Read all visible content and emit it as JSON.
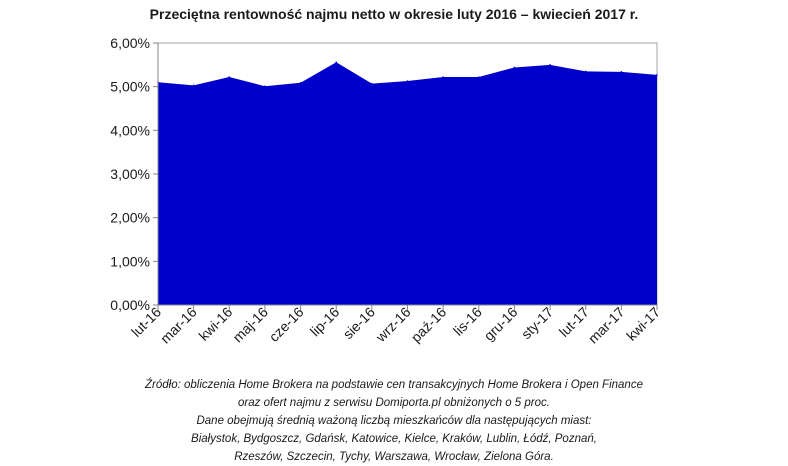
{
  "chart_data": {
    "type": "area",
    "title": "Przeciętna rentowność najmu netto w okresie luty 2016 – kwiecień 2017 r.",
    "xlabel": "",
    "ylabel": "",
    "x": [
      "lut-16",
      "mar-16",
      "kwi-16",
      "maj-16",
      "cze-16",
      "lip-16",
      "sie-16",
      "wrz-16",
      "paź-16",
      "lis-16",
      "gru-16",
      "sty-17",
      "lut-17",
      "mar-17",
      "kwi-17"
    ],
    "series": [
      {
        "values": [
          5.1,
          5.03,
          5.22,
          5.01,
          5.09,
          5.56,
          5.07,
          5.13,
          5.22,
          5.22,
          5.44,
          5.5,
          5.35,
          5.34,
          5.27
        ]
      }
    ],
    "ylim": [
      0,
      6
    ],
    "yticks": [
      "0,00%",
      "1,00%",
      "2,00%",
      "3,00%",
      "4,00%",
      "5,00%",
      "6,00%"
    ],
    "grid": false,
    "fill_color": "#0000CC"
  },
  "source_note": [
    "Źródło: obliczenia Home Brokera na podstawie cen transakcyjnych Home Brokera i Open Finance",
    "oraz ofert najmu z serwisu Domiporta.pl obniżonych o 5 proc.",
    "Dane obejmują średnią ważoną liczbą mieszkańców dla następujących miast:",
    "Białystok, Bydgoszcz, Gdańsk, Katowice, Kielce, Kraków, Lublin, Łódź, Poznań,",
    "Rzeszów, Szczecin, Tychy, Warszawa, Wrocław, Zielona Góra."
  ]
}
